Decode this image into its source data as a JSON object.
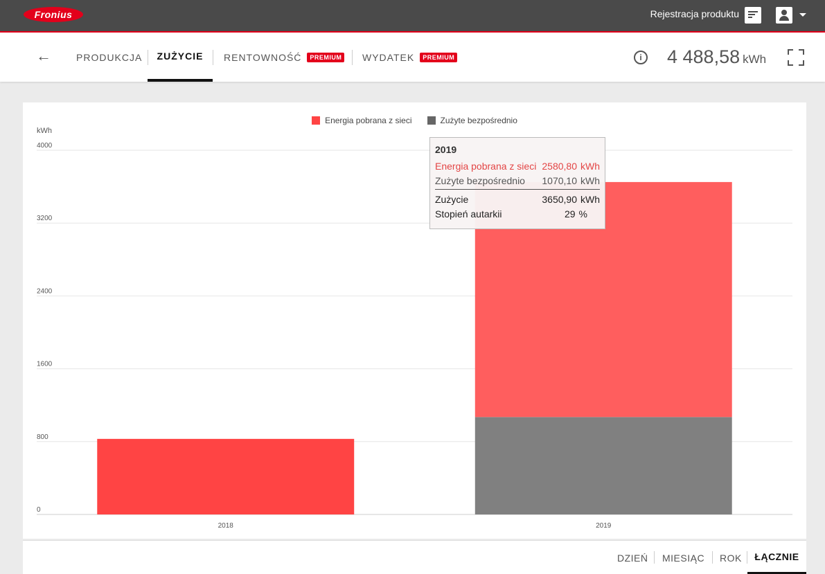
{
  "header": {
    "logo_text": "Fronius",
    "register_label": "Rejestracja produktu",
    "register_icon": "certificate-icon",
    "user_icon": "account-icon"
  },
  "nav": {
    "tabs": [
      {
        "label": "PRODUKCJA",
        "active": false,
        "premium": false
      },
      {
        "label": "ZUŻYCIE",
        "active": true,
        "premium": false
      },
      {
        "label": "RENTOWNOŚĆ",
        "active": false,
        "premium": true
      },
      {
        "label": "WYDATEK",
        "active": false,
        "premium": true
      }
    ],
    "premium_label": "PREMIUM",
    "info_icon_glyph": "i",
    "total_value": "4 488,58",
    "total_unit": "kWh"
  },
  "chart_data": {
    "type": "bar",
    "stacked": true,
    "categories": [
      "2018",
      "2019"
    ],
    "series": [
      {
        "name": "Energia pobrana z sieci",
        "color": "#ff4444",
        "values": [
          830,
          2580.8
        ]
      },
      {
        "name": "Zużyte bezpośrednio",
        "color": "#808080",
        "values": [
          0,
          1070.1
        ]
      }
    ],
    "ylabel": "kWh",
    "ylim": [
      0,
      4000
    ],
    "yticks": [
      "0",
      "800",
      "1600",
      "2400",
      "3200",
      "4000"
    ],
    "grid": true,
    "legend_position": "top-center"
  },
  "tooltip": {
    "title": "2019",
    "rows": [
      {
        "label": "Energia pobrana z sieci",
        "value": "2580,80",
        "unit": "kWh"
      },
      {
        "label": "Zużyte bezpośrednio",
        "value": "1070,10",
        "unit": "kWh"
      },
      {
        "label": "Zużycie",
        "value": "3650,90",
        "unit": "kWh"
      },
      {
        "label": "Stopień autarkii",
        "value": "29",
        "unit": "%"
      }
    ]
  },
  "periods": [
    {
      "label": "DZIEŃ",
      "active": false
    },
    {
      "label": "MIESIĄC",
      "active": false
    },
    {
      "label": "ROK",
      "active": false
    },
    {
      "label": "ŁĄCZNIE",
      "active": true
    }
  ]
}
